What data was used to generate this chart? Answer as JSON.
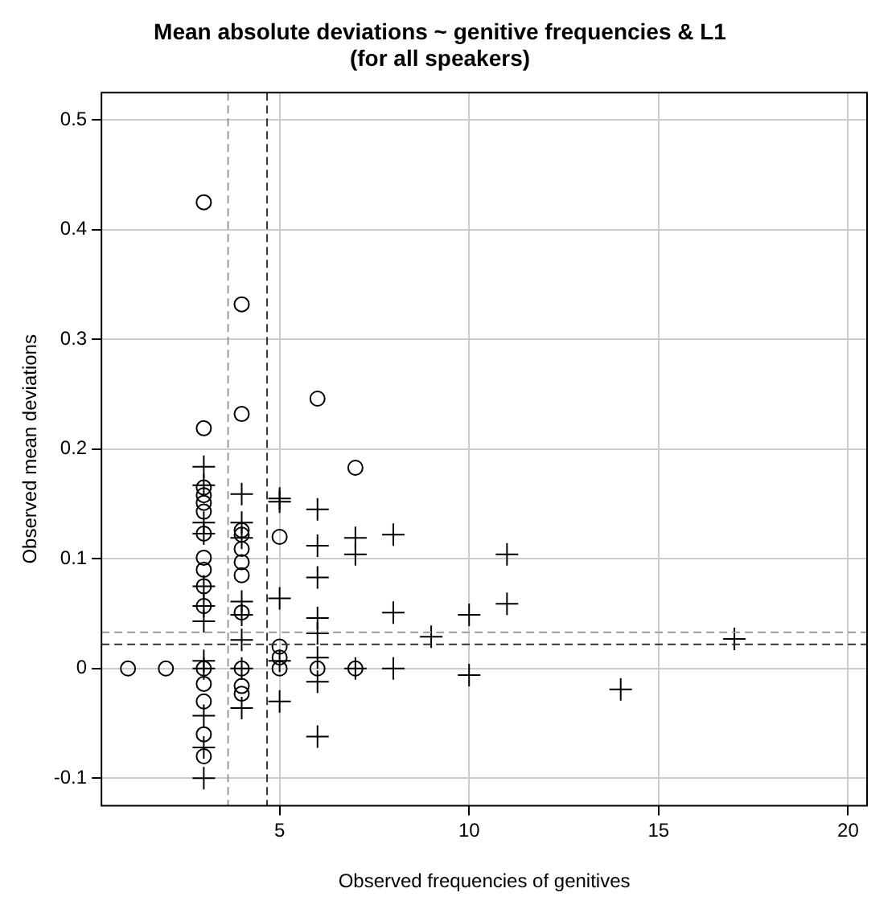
{
  "chart_data": {
    "type": "scatter",
    "title": "Mean absolute deviations ~ genitive frequencies & L1\n(for all speakers)",
    "xlabel": "Observed frequencies of genitives",
    "ylabel": "Observed mean deviations",
    "xlim": [
      0.3,
      20.5
    ],
    "ylim": [
      -0.125,
      0.525
    ],
    "xticks": [
      5,
      10,
      15,
      20
    ],
    "yticks": [
      -0.1,
      0,
      0.1,
      0.2,
      0.3,
      0.4,
      0.5
    ],
    "grid": true,
    "legend": false,
    "series": [
      {
        "color": "#000000",
        "marker": "circle",
        "x": [
          1,
          2,
          3,
          3,
          3,
          3,
          3,
          3,
          3,
          3,
          3,
          3,
          3,
          3,
          3,
          3,
          3,
          3,
          4,
          4,
          4,
          4,
          4,
          4,
          4,
          4,
          4,
          4,
          4,
          5,
          5,
          5,
          5,
          6,
          6,
          7,
          7
        ],
        "values": [
          0,
          0,
          0.425,
          0.219,
          0.165,
          0.158,
          0.151,
          0.143,
          0.123,
          0.101,
          0.09,
          0.075,
          0.057,
          0,
          -0.014,
          -0.03,
          -0.06,
          -0.08,
          0.332,
          0.232,
          0.126,
          0.122,
          0.109,
          0.097,
          0.085,
          0.051,
          0,
          -0.016,
          -0.023,
          0.12,
          0.02,
          0.01,
          0,
          0.246,
          0,
          0.183,
          0
        ]
      },
      {
        "color": "#000000",
        "marker": "cross",
        "x": [
          3,
          3,
          3,
          3,
          3,
          3,
          3,
          3,
          3,
          3,
          3,
          3,
          4,
          4,
          4,
          4,
          4,
          4,
          4,
          4,
          5,
          5,
          5,
          5,
          5,
          6,
          6,
          6,
          6,
          6,
          6,
          6,
          6,
          7,
          7,
          7,
          8,
          8,
          8,
          9,
          10,
          10,
          11,
          11,
          14,
          17
        ],
        "values": [
          0.184,
          0.167,
          0.133,
          0.123,
          0.075,
          0.057,
          0.043,
          0.007,
          0,
          -0.043,
          -0.072,
          -0.1,
          0.159,
          0.133,
          0.119,
          0.061,
          0.049,
          0.026,
          0,
          -0.036,
          0.155,
          0.152,
          0.064,
          0.007,
          -0.03,
          0.145,
          0.112,
          0.083,
          0.046,
          0.032,
          0.01,
          -0.012,
          -0.062,
          0.119,
          0.104,
          0,
          0.122,
          0.051,
          0,
          0.029,
          0.049,
          -0.006,
          0.104,
          0.059,
          -0.019,
          0.027
        ]
      }
    ],
    "ref_lines": [
      {
        "axis": "x",
        "value": 4.67,
        "color": "#333333",
        "line_style": "dashed"
      },
      {
        "axis": "x",
        "value": 3.64,
        "color": "#999999",
        "line_style": "dashed"
      },
      {
        "axis": "y",
        "value": 0.022,
        "color": "#333333",
        "line_style": "dashed"
      },
      {
        "axis": "y",
        "value": 0.033,
        "color": "#999999",
        "line_style": "dashed"
      }
    ]
  }
}
